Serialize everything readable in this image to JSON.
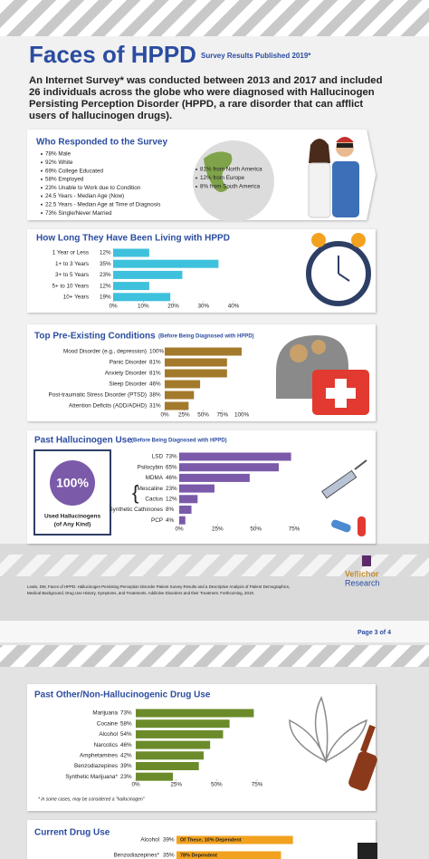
{
  "header": {
    "title": "Faces of HPPD",
    "subtitle": "Survey Results Published 2019*"
  },
  "intro": [
    "An Internet Survey* was conducted between 2013 and 2017 and included",
    "26 individuals across the globe who were diagnosed with Hallucinogen",
    "Persisting Perception Disorder (HPPD, a rare disorder that can afflict",
    "users of hallucinogen drugs)."
  ],
  "respondents": {
    "title": "Who Responded to the Survey",
    "items": [
      "78% Male",
      "92% White",
      "69% College Educated",
      "58% Employed",
      "23% Unable to Work due to Condition",
      "24.5 Years - Median Age (Now)",
      "22.5 Years - Median Age at Time of Diagnosis",
      "73% Single/Never Married"
    ],
    "regions": [
      "81% from North America",
      "12% from Europe",
      "8% from South America"
    ]
  },
  "chart_data": [
    {
      "type": "bar",
      "title": "How Long They Have Been Living with HPPD",
      "categories": [
        "1 Year or Less",
        "1+ to 3 Years",
        "3+ to 5 Years",
        "5+ to 10 Years",
        "10+ Years"
      ],
      "values": [
        12,
        35,
        23,
        12,
        19
      ],
      "value_labels": [
        "12%",
        "35%",
        "23%",
        "12%",
        "19%"
      ],
      "color": "#3ec1dd",
      "xlim": [
        0,
        40
      ],
      "xticks": [
        {
          "value": 0,
          "label": "0%"
        },
        {
          "value": 10,
          "label": "10%"
        },
        {
          "value": 20,
          "label": "20%"
        },
        {
          "value": 30,
          "label": "30%"
        },
        {
          "value": 40,
          "label": "40%"
        }
      ]
    },
    {
      "type": "bar",
      "title": "Top Pre-Existing Conditions",
      "subtitle": "(Before Being Diagnosed with HPPD)",
      "categories": [
        "Mood Disorder (e.g., depression)",
        "Panic Disorder",
        "Anxiety Disorder",
        "Sleep Disorder",
        "Post-traumatic Stress Disorder (PTSD)",
        "Attention Deficits (ADD/ADHD)"
      ],
      "values": [
        100,
        81,
        81,
        46,
        38,
        31
      ],
      "value_labels": [
        "100%",
        "81%",
        "81%",
        "46%",
        "38%",
        "31%"
      ],
      "color": "#a37a2c",
      "xlim": [
        0,
        100
      ],
      "xticks": [
        {
          "value": 0,
          "label": "0%"
        },
        {
          "value": 25,
          "label": "25%"
        },
        {
          "value": 50,
          "label": "50%"
        },
        {
          "value": 75,
          "label": "75%"
        },
        {
          "value": 100,
          "label": "100%"
        }
      ]
    },
    {
      "type": "bar",
      "title": "Past Hallucinogen Use",
      "subtitle": "(Before Being Diagnosed with HPPD)",
      "highlight": {
        "value": 100,
        "value_label": "100%",
        "label": [
          "Used Hallucinogens",
          "(of Any Kind)"
        ]
      },
      "categories": [
        "LSD",
        "Psilocybin",
        "MDMA",
        "Mescaline",
        "Cactus",
        "Synthetic Cathinones",
        "PCP"
      ],
      "values": [
        73,
        65,
        46,
        23,
        12,
        8,
        4
      ],
      "value_labels": [
        "73%",
        "65%",
        "46%",
        "23%",
        "12%",
        "8%",
        "4%"
      ],
      "color": "#7b5aa9",
      "xlim": [
        0,
        75
      ],
      "xticks": [
        {
          "value": 0,
          "label": "0%"
        },
        {
          "value": 25,
          "label": "25%"
        },
        {
          "value": 50,
          "label": "50%"
        },
        {
          "value": 75,
          "label": "75%"
        }
      ]
    },
    {
      "type": "bar",
      "title": "Past Other/Non-Hallucinogenic Drug Use",
      "categories": [
        "Marijuana",
        "Cocaine",
        "Alcohol",
        "Narcotics",
        "Amphetamines",
        "Benzodiazepines",
        "Synthetic Marijuana*"
      ],
      "values": [
        73,
        58,
        54,
        46,
        42,
        39,
        23
      ],
      "value_labels": [
        "73%",
        "58%",
        "54%",
        "46%",
        "42%",
        "39%",
        "23%"
      ],
      "color": "#6b8b2b",
      "xlim": [
        0,
        75
      ],
      "xticks": [
        {
          "value": 0,
          "label": "0%"
        },
        {
          "value": 25,
          "label": "25%"
        },
        {
          "value": 50,
          "label": "50%"
        },
        {
          "value": 75,
          "label": "75%"
        }
      ],
      "footnote": "* in some cases, may be considered a \"hallucinogen\""
    },
    {
      "type": "bar",
      "title": "Current Drug Use",
      "categories": [
        "Alcohol",
        "Benzodiazepines*"
      ],
      "values": [
        39,
        35
      ],
      "value_labels": [
        "39%",
        "35%"
      ],
      "annotations": [
        "Of These, 10% Dependent",
        "78% Dependent"
      ],
      "color": "#f2a21e"
    }
  ],
  "citation": [
    "Lewis, DM, Faces of HPPD. Hallucinogen Persisting Perception Disorder Patient Survey Results and a Descriptive Analysis of Patient Demographics,",
    "Medical Background, Drug Use History, Symptoms, and Treatments. Addictive Disorders and their Treatment. Forthcoming, 2019."
  ],
  "logo": [
    "Vellichor",
    "Research"
  ],
  "page": "Page 3 of 4"
}
